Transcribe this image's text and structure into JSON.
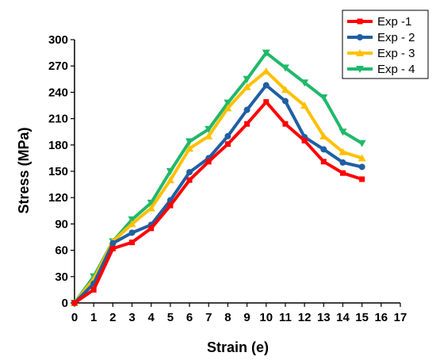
{
  "chart_data": {
    "type": "line",
    "xlabel": "Strain (e)",
    "ylabel": "Stress (MPa)",
    "xlim": [
      0,
      17
    ],
    "ylim": [
      0,
      300
    ],
    "x_ticks": [
      0,
      1,
      2,
      3,
      4,
      5,
      6,
      7,
      8,
      9,
      10,
      11,
      12,
      13,
      14,
      15,
      16,
      17
    ],
    "y_ticks": [
      0,
      30,
      60,
      90,
      120,
      150,
      180,
      210,
      240,
      270,
      300
    ],
    "grid": false,
    "legend_position": "top-right",
    "x": [
      0,
      1,
      2,
      3,
      4,
      5,
      6,
      7,
      8,
      9,
      10,
      11,
      12,
      13,
      14,
      15
    ],
    "series": [
      {
        "name": "Exp -1",
        "color": "#ff0000",
        "marker": "square",
        "values": [
          0,
          15,
          62,
          69,
          85,
          111,
          140,
          161,
          181,
          204,
          229,
          204,
          185,
          161,
          148,
          141
        ]
      },
      {
        "name": "Exp - 2",
        "color": "#1f5fa3",
        "marker": "circle",
        "values": [
          0,
          22,
          68,
          80,
          89,
          117,
          149,
          165,
          190,
          220,
          248,
          230,
          189,
          175,
          160,
          155
        ]
      },
      {
        "name": "Exp - 3",
        "color": "#ffc000",
        "marker": "triangle-up",
        "values": [
          0,
          27,
          70,
          90,
          108,
          140,
          176,
          190,
          222,
          246,
          264,
          243,
          225,
          190,
          172,
          165
        ]
      },
      {
        "name": "Exp - 4",
        "color": "#21b86a",
        "marker": "triangle-down",
        "values": [
          0,
          30,
          70,
          95,
          114,
          150,
          184,
          198,
          228,
          255,
          285,
          268,
          251,
          234,
          195,
          182
        ]
      }
    ]
  }
}
